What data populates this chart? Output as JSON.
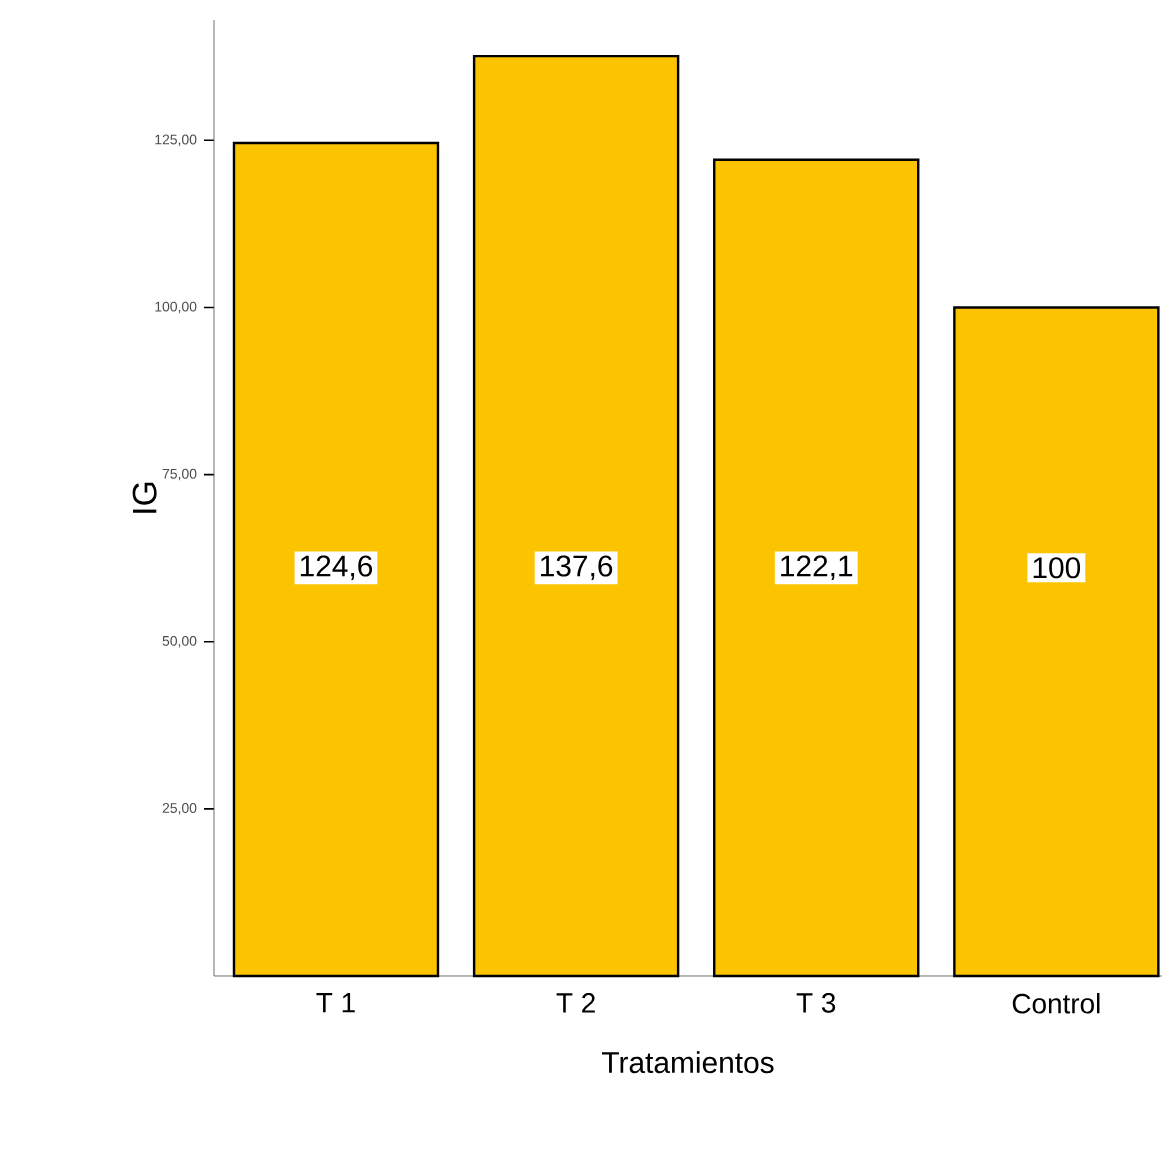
{
  "chart_data": {
    "type": "bar",
    "xlabel": "Tratamientos",
    "ylabel": "IG",
    "categories": [
      "T 1",
      "T 2",
      "T 3",
      "Control"
    ],
    "values": [
      124.6,
      137.6,
      122.1,
      100
    ],
    "value_labels": [
      "124,6",
      "137,6",
      "122,1",
      "100"
    ],
    "color": "#fcc400",
    "ylim": [
      0,
      143
    ],
    "yticks": [
      {
        "value": 25,
        "label": "25,00"
      },
      {
        "value": 50,
        "label": "50,00"
      },
      {
        "value": 75,
        "label": "75,00"
      },
      {
        "value": 100,
        "label": "100,00"
      },
      {
        "value": 125,
        "label": "125,00"
      }
    ]
  }
}
